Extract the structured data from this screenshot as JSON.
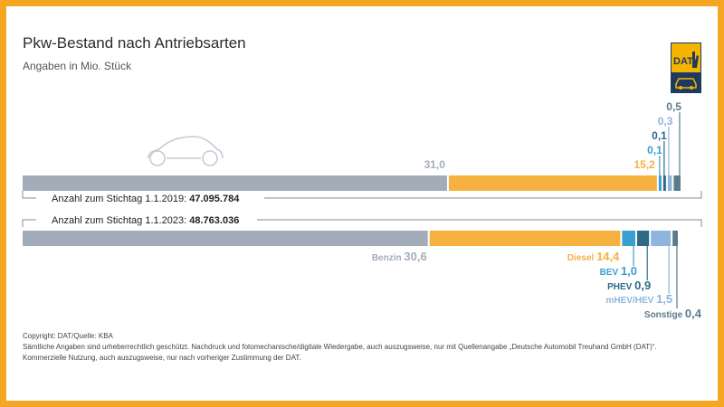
{
  "header": {
    "title": "Pkw-Bestand nach Antriebsarten",
    "subtitle": "Angaben in Mio. Stück"
  },
  "logo": {
    "text": "DAT",
    "color_bg": "#f5b400",
    "color_dark": "#1e3a5f"
  },
  "footer": {
    "line1": "Copyright: DAT/Quelle: KBA",
    "line2": "Sämtliche Angaben sind urheberrechtlich geschützt. Nachdruck und fotomechanische/digitale Wiedergabe, auch auszugsweise, nur mit Quellenangabe „Deutsche Automobil Treuhand GmbH (DAT)“.",
    "line3": "Kommerzielle Nutzung, auch auszugsweise, nur nach vorheriger Zustimmung der DAT."
  },
  "chart_data": {
    "type": "bar",
    "orientation": "horizontal-stacked",
    "categories": [
      "Benzin",
      "Diesel",
      "BEV",
      "PHEV",
      "mHEV/HEV",
      "Sonstige"
    ],
    "colors": [
      "#a3adba",
      "#f7b140",
      "#3a9fd0",
      "#2c6a88",
      "#8fb5dd",
      "#5b7a8a"
    ],
    "rows": [
      {
        "label": "Anzahl zum Stichtag 1.1.2019: ",
        "total": "47.095.784",
        "values": [
          31.0,
          15.2,
          0.1,
          0.1,
          0.3,
          0.5
        ],
        "value_labels": [
          "31,0",
          "15,2",
          "0,1",
          "0,1",
          "0,3",
          "0,5"
        ]
      },
      {
        "label": "Anzahl zum Stichtag 1.1.2023: ",
        "total": "48.763.036",
        "values": [
          30.6,
          14.4,
          1.0,
          0.9,
          1.5,
          0.4
        ],
        "value_labels": [
          "30,6",
          "14,4",
          "1,0",
          "0,9",
          "1,5",
          "0,4"
        ]
      }
    ]
  }
}
